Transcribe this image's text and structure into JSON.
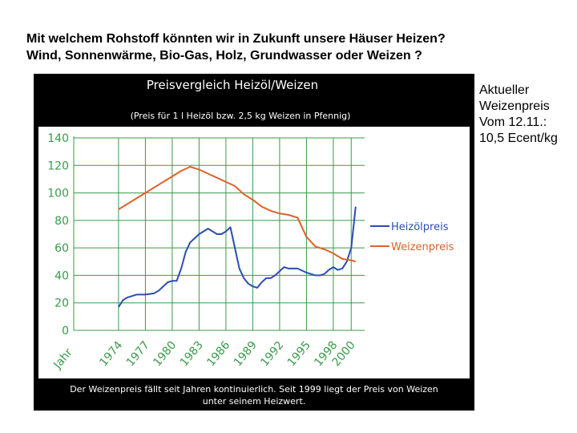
{
  "heading": {
    "line1": "Mit welchem Rohstoff könnten wir in Zukunft unsere Häuser Heizen?",
    "line2": "Wind, Sonnenwärme, Bio-Gas, Holz, Grundwasser oder Weizen ?"
  },
  "side_note": {
    "line1": "Aktueller",
    "line2": "Weizenpreis",
    "line3": "Vom 12.11.:",
    "line4": "10,5 Ecent/kg"
  },
  "chart_data": {
    "type": "line",
    "title": "Preisvergleich Heizöl/Weizen",
    "subtitle": "(Preis für 1 l Heizöl bzw. 2,5 kg Weizen in Pfennig)",
    "footnote_line1": "Der Weizenpreis fällt seit Jahren kontinuierlich. Seit 1999 liegt der Preis von Weizen",
    "footnote_line2": "unter seinem Heizwert.",
    "xlabel": "Jahr",
    "ylabel": "",
    "x_ticks": [
      "1974",
      "1977",
      "1980",
      "1983",
      "1986",
      "1989",
      "1992",
      "1995",
      "1998",
      "2000"
    ],
    "y_ticks": [
      "0",
      "20",
      "40",
      "60",
      "80",
      "100",
      "120",
      "140"
    ],
    "xlim": [
      1971.5,
      2001.5
    ],
    "ylim": [
      0,
      140
    ],
    "grid": true,
    "legend_position": "right",
    "colors": {
      "background": "#000000",
      "plot": "#ffffff",
      "grid": "#3a9a4a",
      "heizoel": "#2a4db0",
      "weizen": "#e0602a"
    },
    "series": [
      {
        "name": "Heizölpreis",
        "x": [
          1974,
          1974.5,
          1975,
          1976,
          1977,
          1978,
          1978.5,
          1979,
          1979.5,
          1980,
          1980.5,
          1981,
          1981.5,
          1982,
          1983,
          1983.5,
          1984,
          1985,
          1985.5,
          1986,
          1986.5,
          1987,
          1987.5,
          1988,
          1988.5,
          1989,
          1989.5,
          1990,
          1990.5,
          1991,
          1991.5,
          1992,
          1992.5,
          1993,
          1994,
          1995,
          1995.5,
          1996,
          1996.5,
          1997,
          1997.5,
          1998,
          1998.5,
          1999,
          1999.5,
          2000,
          2000.5
        ],
        "values": [
          17,
          22,
          24,
          26,
          26,
          27,
          29,
          32,
          35,
          36,
          36,
          45,
          57,
          64,
          70,
          72,
          74,
          70,
          70,
          72,
          75,
          60,
          45,
          38,
          34,
          32,
          31,
          35,
          38,
          38,
          40,
          43,
          46,
          45,
          45,
          42,
          41,
          40,
          40,
          41,
          44,
          46,
          44,
          45,
          50,
          60,
          90
        ]
      },
      {
        "name": "Weizenpreis",
        "x": [
          1974,
          1976,
          1978,
          1980,
          1981,
          1982,
          1983,
          1984,
          1985,
          1986,
          1987,
          1988,
          1989,
          1990,
          1991,
          1992,
          1993,
          1994,
          1995,
          1996,
          1997,
          1998,
          1999,
          2000,
          2000.5
        ],
        "values": [
          88,
          96,
          104,
          112,
          116,
          119,
          117,
          114,
          111,
          108,
          105,
          99,
          95,
          90,
          87,
          85,
          84,
          82,
          68,
          61,
          59,
          56,
          52,
          51,
          50
        ]
      }
    ]
  }
}
